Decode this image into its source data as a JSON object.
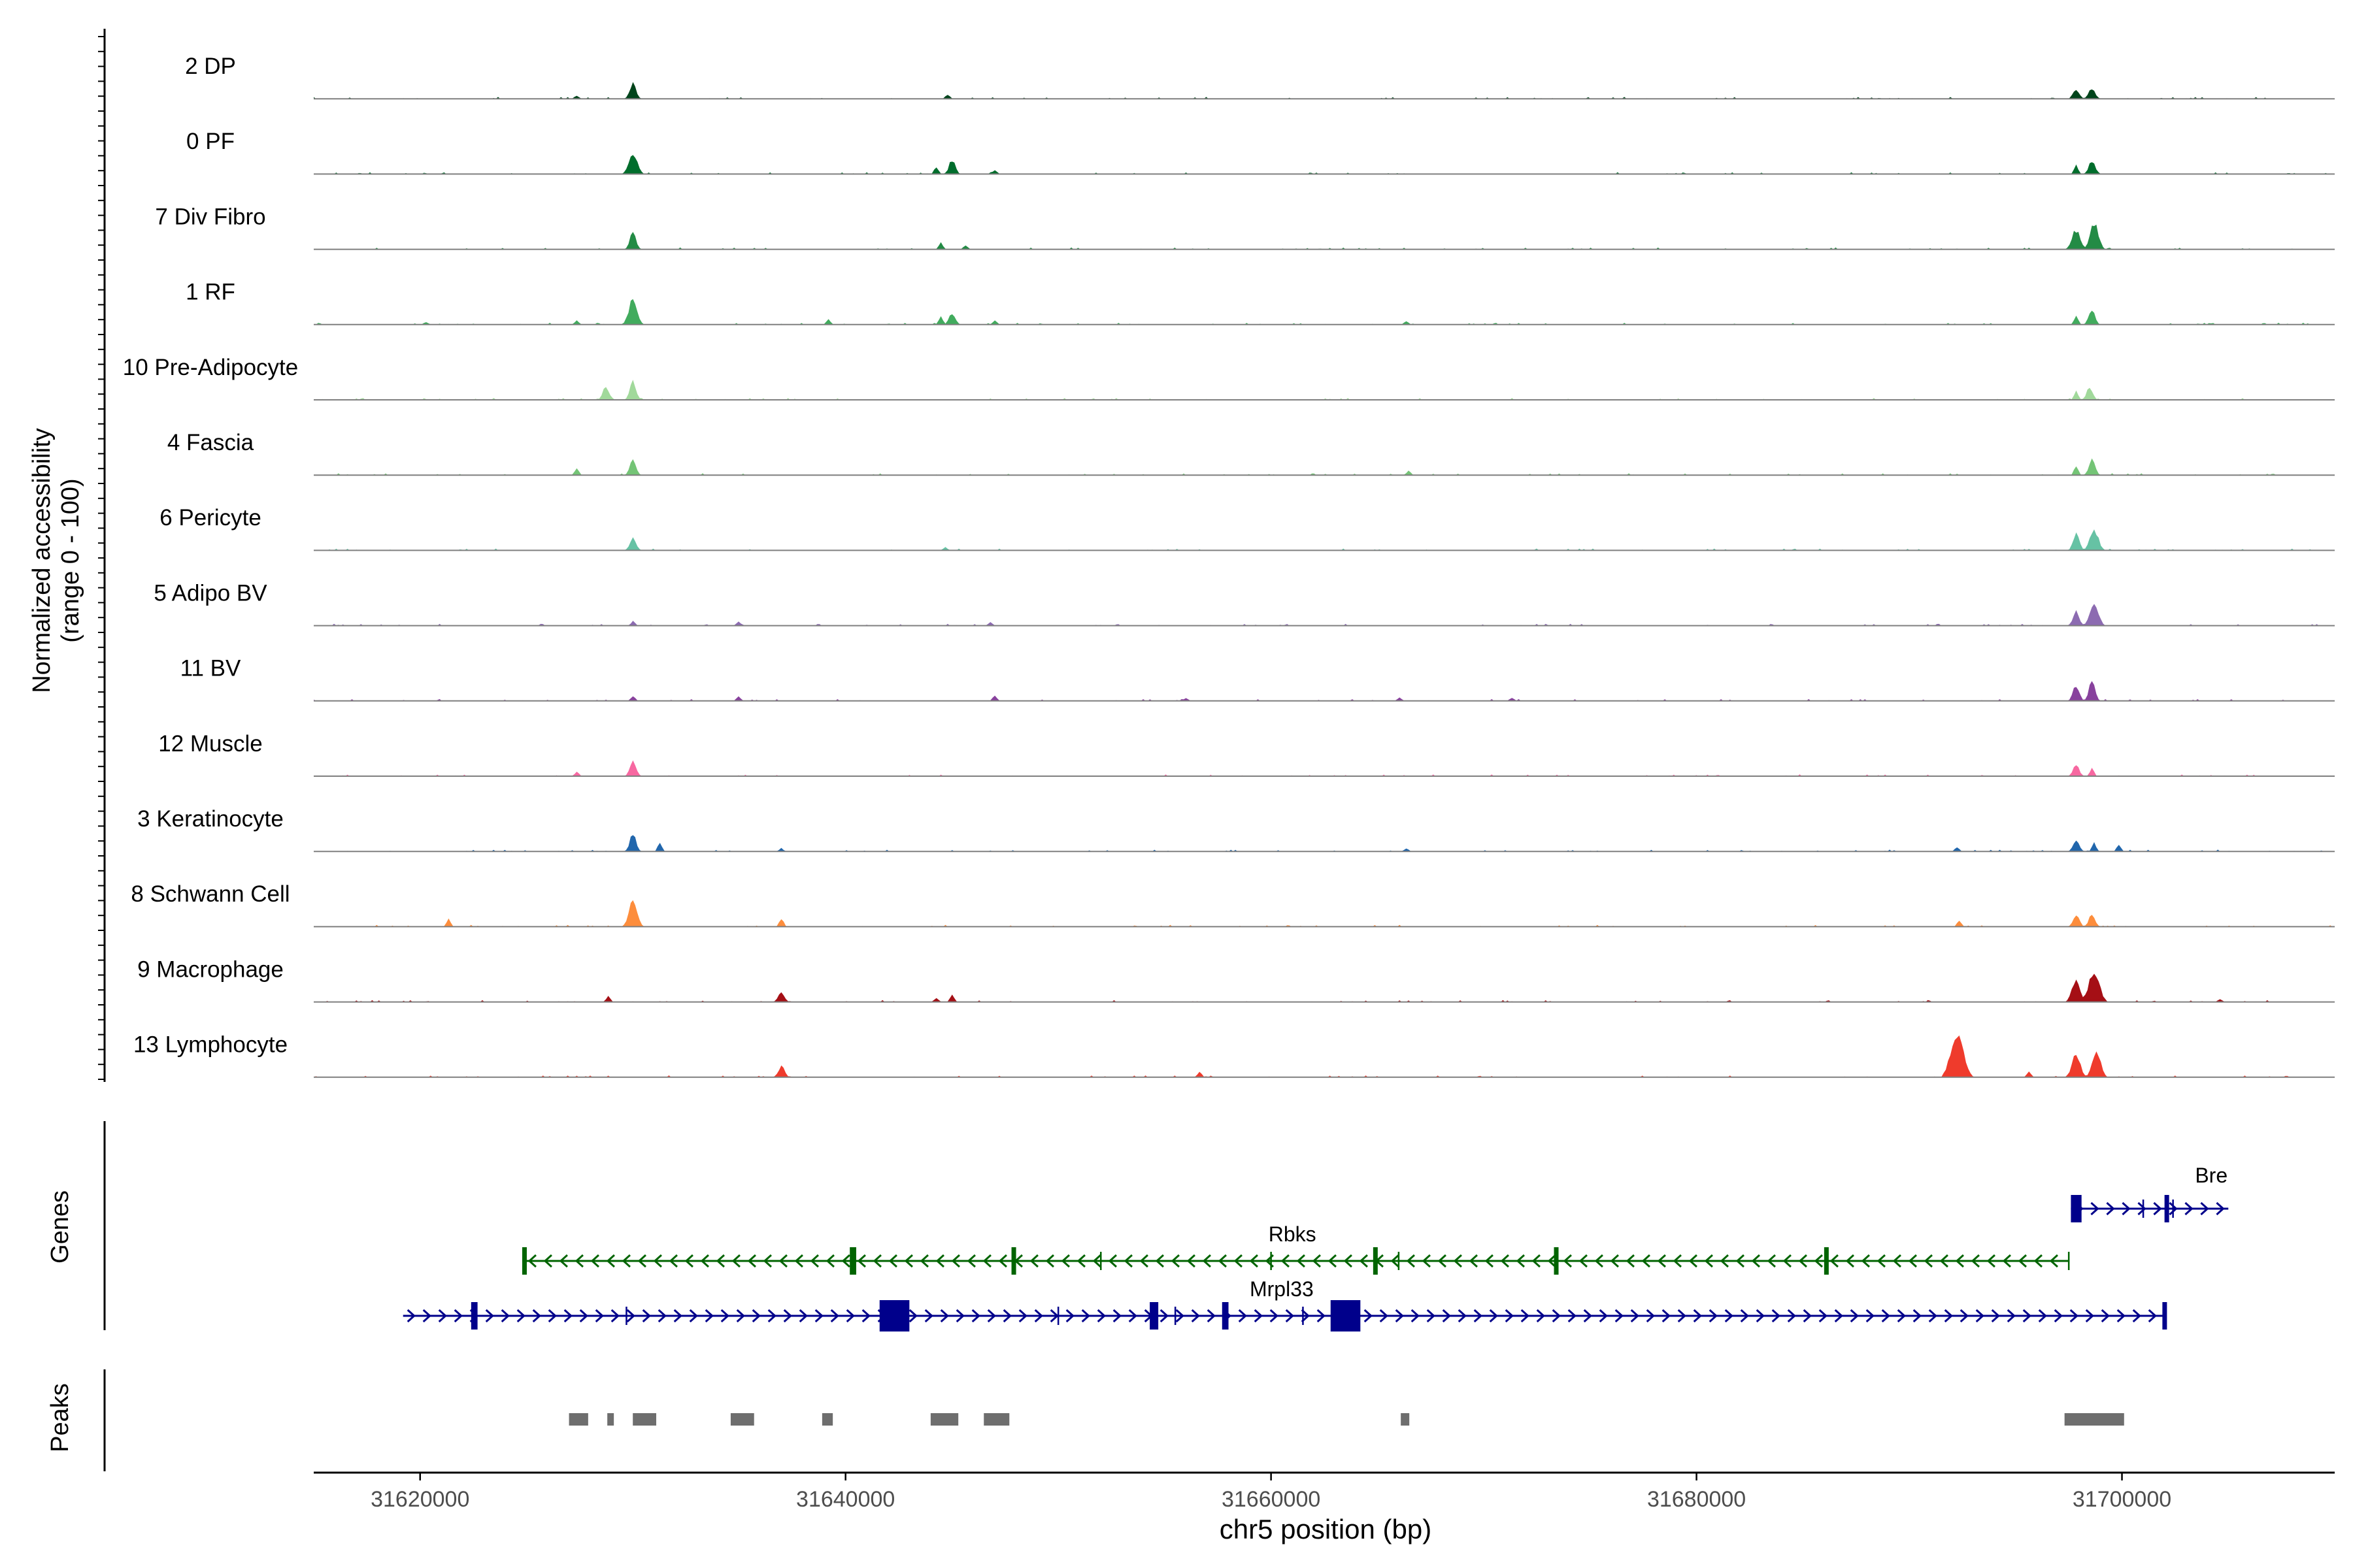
{
  "chart_data": {
    "type": "area",
    "subtype": "genome-coverage-tracks",
    "chromosome": "chr5",
    "xlim": [
      31615000,
      31710000
    ],
    "xlabel": "chr5 position (bp)",
    "ylabel_line1": "Normalized accessibility",
    "ylabel_line2": "(range 0 - 100)",
    "y_range": [
      0,
      100
    ],
    "x_ticks": [
      31620000,
      31640000,
      31660000,
      31680000,
      31700000
    ],
    "x_tick_labels": [
      "31620000",
      "31640000",
      "31660000",
      "31680000",
      "31700000"
    ],
    "series": [
      {
        "name": "2 DP",
        "color": "#00441b",
        "peaks": [
          [
            31630000,
            28
          ],
          [
            31627300,
            6
          ],
          [
            31644800,
            8
          ],
          [
            31697800,
            18
          ],
          [
            31698500,
            20
          ]
        ]
      },
      {
        "name": "0 PF",
        "color": "#006d2c",
        "peaks": [
          [
            31630000,
            40
          ],
          [
            31645000,
            26
          ],
          [
            31644200,
            14
          ],
          [
            31647000,
            8
          ],
          [
            31697800,
            16
          ],
          [
            31698500,
            24
          ]
        ]
      },
      {
        "name": "7 Div Fibro",
        "color": "#238b45",
        "peaks": [
          [
            31630000,
            30
          ],
          [
            31644500,
            12
          ],
          [
            31645600,
            8
          ],
          [
            31697800,
            36
          ],
          [
            31698600,
            48
          ]
        ]
      },
      {
        "name": "1 RF",
        "color": "#41ab5d",
        "peaks": [
          [
            31630000,
            46
          ],
          [
            31627300,
            8
          ],
          [
            31639200,
            10
          ],
          [
            31645000,
            22
          ],
          [
            31644400,
            16
          ],
          [
            31647000,
            8
          ],
          [
            31620300,
            5
          ],
          [
            31666300,
            6
          ],
          [
            31697800,
            16
          ],
          [
            31698500,
            26
          ]
        ]
      },
      {
        "name": "10 Pre-Adipocyte",
        "color": "#a1d99b",
        "peaks": [
          [
            31630000,
            34
          ],
          [
            31628700,
            24
          ],
          [
            31697800,
            16
          ],
          [
            31698400,
            22
          ]
        ]
      },
      {
        "name": "4 Fascia",
        "color": "#74c476",
        "peaks": [
          [
            31630000,
            28
          ],
          [
            31627300,
            12
          ],
          [
            31666400,
            8
          ],
          [
            31697800,
            16
          ],
          [
            31698500,
            28
          ]
        ]
      },
      {
        "name": "6 Pericyte",
        "color": "#66c2a4",
        "peaks": [
          [
            31630000,
            24
          ],
          [
            31644700,
            6
          ],
          [
            31697800,
            30
          ],
          [
            31698600,
            38
          ]
        ]
      },
      {
        "name": "5 Adipo BV",
        "color": "#8c6bb1",
        "peaks": [
          [
            31630000,
            8
          ],
          [
            31635000,
            8
          ],
          [
            31646800,
            6
          ],
          [
            31697800,
            26
          ],
          [
            31698600,
            42
          ]
        ]
      },
      {
        "name": "11 BV",
        "color": "#88419d",
        "peaks": [
          [
            31630000,
            10
          ],
          [
            31635000,
            8
          ],
          [
            31647000,
            10
          ],
          [
            31656000,
            5
          ],
          [
            31666000,
            6
          ],
          [
            31671300,
            6
          ],
          [
            31697800,
            28
          ],
          [
            31698500,
            34
          ]
        ]
      },
      {
        "name": "12 Muscle",
        "color": "#f768a1",
        "peaks": [
          [
            31630000,
            26
          ],
          [
            31627400,
            8
          ],
          [
            31697800,
            20
          ],
          [
            31698500,
            14
          ]
        ]
      },
      {
        "name": "3 Keratinocyte",
        "color": "#2166ac",
        "peaks": [
          [
            31630000,
            32
          ],
          [
            31631300,
            16
          ],
          [
            31637000,
            6
          ],
          [
            31666300,
            6
          ],
          [
            31692200,
            8
          ],
          [
            31697800,
            18
          ],
          [
            31698600,
            16
          ],
          [
            31699800,
            12
          ]
        ]
      },
      {
        "name": "8 Schwann Cell",
        "color": "#fd8d3c",
        "peaks": [
          [
            31630000,
            46
          ],
          [
            31621300,
            14
          ],
          [
            31637000,
            16
          ],
          [
            31692300,
            12
          ],
          [
            31697800,
            22
          ],
          [
            31698500,
            22
          ]
        ]
      },
      {
        "name": "9 Macrophage",
        "color": "#a50f15",
        "peaks": [
          [
            31637000,
            18
          ],
          [
            31628800,
            10
          ],
          [
            31645000,
            12
          ],
          [
            31644200,
            8
          ],
          [
            31697800,
            40
          ],
          [
            31698600,
            56
          ],
          [
            31704500,
            5
          ]
        ]
      },
      {
        "name": "13 Lymphocyte",
        "color": "#ef3b2c",
        "peaks": [
          [
            31692200,
            80
          ],
          [
            31692600,
            20
          ],
          [
            31637000,
            20
          ],
          [
            31656600,
            10
          ],
          [
            31697800,
            40
          ],
          [
            31698700,
            50
          ],
          [
            31695500,
            10
          ]
        ]
      }
    ],
    "genes_panel_label": "Genes",
    "peaks_panel_label": "Peaks",
    "genes": [
      {
        "name": "Bre",
        "strand": "+",
        "color": "#00008b",
        "start": 31697600,
        "end": 31705000,
        "exons": [
          [
            31697600,
            31698100
          ],
          [
            31702000,
            31702200
          ]
        ],
        "introns_marks": [
          31702400,
          31701000
        ]
      },
      {
        "name": "Rbks",
        "strand": "-",
        "color": "#006400",
        "start": 31624800,
        "end": 31697500,
        "exons": [
          [
            31624800,
            31625000
          ],
          [
            31640200,
            31640500
          ],
          [
            31647800,
            31647950
          ],
          [
            31664800,
            31665000
          ],
          [
            31673300,
            31673500
          ],
          [
            31686000,
            31686200
          ]
        ],
        "introns_marks": [
          31652000,
          31660000,
          31666000,
          31697500
        ]
      },
      {
        "name": "Mrpl33",
        "strand": "+",
        "color": "#00008b",
        "start": 31619200,
        "end": 31702000,
        "exons": [
          [
            31622400,
            31622700
          ],
          [
            31641600,
            31643000
          ],
          [
            31654300,
            31654700
          ],
          [
            31657700,
            31658000
          ],
          [
            31662800,
            31664200
          ],
          [
            31701900,
            31702100
          ]
        ],
        "introns_marks": [
          31629700,
          31650000,
          31655500,
          31661500
        ]
      }
    ],
    "peak_regions": [
      [
        31627000,
        31627900
      ],
      [
        31628800,
        31629100
      ],
      [
        31630000,
        31631100
      ],
      [
        31634600,
        31635700
      ],
      [
        31638900,
        31639400
      ],
      [
        31644000,
        31645300
      ],
      [
        31646500,
        31647700
      ],
      [
        31666100,
        31666500
      ],
      [
        31697300,
        31700100
      ]
    ]
  }
}
